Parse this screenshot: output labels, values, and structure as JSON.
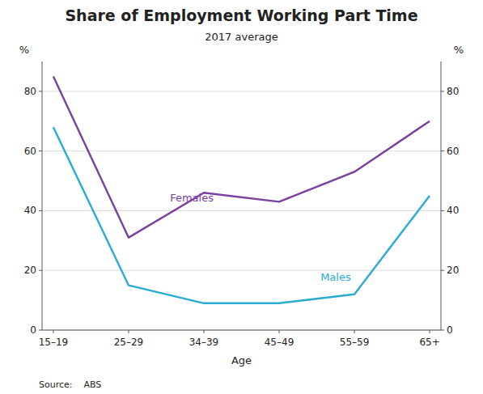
{
  "chart_data": {
    "type": "line",
    "title": "Share of Employment Working Part Time",
    "subtitle": "2017 average",
    "xlabel": "Age",
    "ylabel": "%",
    "y2label": "%",
    "source": "Source:    ABS",
    "categories": [
      "15–19",
      "25–29",
      "34–39",
      "45–49",
      "55–59",
      "65+"
    ],
    "series": [
      {
        "name": "Females",
        "color": "#7B3FA0",
        "values": [
          85,
          31,
          46,
          43,
          53,
          70
        ]
      },
      {
        "name": "Males",
        "color": "#29ABD4",
        "values": [
          68,
          15,
          9,
          9,
          12,
          45
        ]
      }
    ],
    "ylim": [
      0,
      90
    ],
    "yticks": [
      0,
      20,
      40,
      60,
      80
    ],
    "y2lim": [
      0,
      90
    ],
    "y2ticks": [
      0,
      20,
      40,
      60,
      80
    ],
    "grid": true
  }
}
